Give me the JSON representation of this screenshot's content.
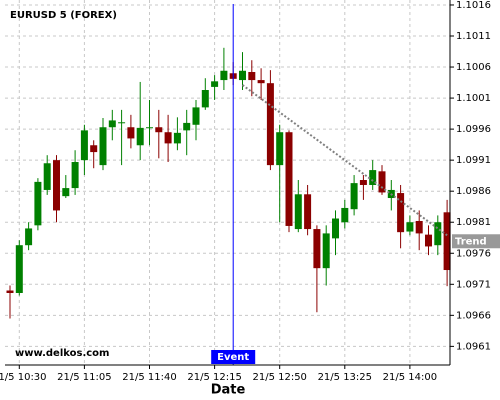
{
  "chart_data": {
    "type": "candlestick",
    "title": "EURUSD 5 (FOREX)",
    "watermark": "www.delkos.com",
    "x_label": "Date",
    "categories": [
      null,
      "21/5 10:30",
      null,
      null,
      null,
      null,
      null,
      null,
      "21/5 11:05",
      null,
      null,
      null,
      null,
      null,
      null,
      "21/5 11:40",
      null,
      null,
      null,
      null,
      null,
      null,
      "21/5 12:15",
      null,
      null,
      null,
      null,
      null,
      null,
      "21/5 12:50",
      null,
      null,
      null,
      null,
      null,
      null,
      "21/5 13:25",
      null,
      null,
      null,
      null,
      null,
      null,
      "21/5 14:00",
      null,
      null,
      null,
      null
    ],
    "open": [
      1.097,
      1.09696,
      1.09773,
      1.09805,
      1.09862,
      1.0991,
      1.09852,
      1.09865,
      1.0991,
      1.09934,
      1.09902,
      1.09963,
      1.0997,
      1.09963,
      1.09934,
      1.09962,
      1.09963,
      1.09955,
      1.09937,
      1.09958,
      1.09967,
      1.09995,
      1.10028,
      1.10039,
      1.1005,
      1.10039,
      1.10052,
      1.10039,
      1.10034,
      1.09902,
      1.09955,
      1.09799,
      1.09855,
      1.09799,
      1.09736,
      1.09784,
      1.0981,
      1.09831,
      1.09878,
      1.0987,
      1.09892,
      1.09849,
      1.09857,
      1.09795,
      1.09812,
      1.0979,
      1.09773,
      1.09826
    ],
    "high": [
      1.09708,
      1.09781,
      1.0981,
      1.09881,
      1.09918,
      1.09918,
      1.09886,
      1.09926,
      1.09967,
      1.09942,
      1.09978,
      1.09991,
      1.09991,
      1.09983,
      1.10036,
      1.10007,
      1.09991,
      1.09983,
      1.09979,
      1.09991,
      1.10007,
      1.10042,
      1.10047,
      1.10091,
      1.10068,
      1.10084,
      1.10071,
      1.10058,
      1.10055,
      1.09967,
      1.09958,
      1.09878,
      1.0987,
      1.09805,
      1.09805,
      1.09829,
      1.09846,
      1.09886,
      1.09886,
      1.0991,
      1.09902,
      1.09878,
      1.0987,
      1.09821,
      1.09829,
      1.09805,
      1.09821,
      1.09846
    ],
    "low": [
      1.09655,
      1.09692,
      1.09765,
      1.09797,
      1.09854,
      1.0981,
      1.09849,
      1.09854,
      1.09886,
      1.09897,
      1.09894,
      1.09942,
      1.09902,
      1.09929,
      1.0991,
      1.09934,
      1.09913,
      1.09907,
      1.09926,
      1.09918,
      1.09942,
      1.09991,
      1.10007,
      1.10023,
      1.10031,
      1.10023,
      1.10013,
      1.10007,
      1.09894,
      1.0981,
      1.09794,
      1.09794,
      1.09789,
      1.09665,
      1.09708,
      1.09757,
      1.098,
      1.09821,
      1.09846,
      1.09862,
      1.09854,
      1.09829,
      1.09768,
      1.09789,
      1.09765,
      1.09757,
      1.09757,
      1.09707
    ],
    "close": [
      1.09696,
      1.09773,
      1.098,
      1.09875,
      1.09905,
      1.09829,
      1.09865,
      1.09907,
      1.09958,
      1.09923,
      1.09963,
      1.09974,
      1.09971,
      1.09945,
      1.09962,
      1.09963,
      1.09955,
      1.09937,
      1.09954,
      1.0997,
      1.09995,
      1.10023,
      1.10037,
      1.10054,
      1.10041,
      1.10054,
      1.10039,
      1.10034,
      1.09902,
      1.09955,
      1.09804,
      1.09855,
      1.09799,
      1.09736,
      1.09792,
      1.09816,
      1.09833,
      1.09873,
      1.0987,
      1.09894,
      1.09858,
      1.09862,
      1.09794,
      1.0981,
      1.09792,
      1.09771,
      1.0981,
      1.09733
    ],
    "up_color": "#008000",
    "down_color": "#8b0000",
    "trend": {
      "name": "Trend",
      "color": "#808080",
      "label_color": "#999999",
      "values": [
        null,
        null,
        null,
        null,
        null,
        null,
        null,
        null,
        null,
        null,
        null,
        null,
        null,
        null,
        null,
        null,
        null,
        null,
        null,
        null,
        null,
        null,
        null,
        null,
        null,
        1.10031,
        1.1002,
        1.10009,
        1.09998,
        1.09987,
        1.09976,
        1.09965,
        1.09954,
        1.09943,
        1.09932,
        1.09921,
        1.0991,
        1.09899,
        1.09888,
        1.09877,
        1.09866,
        1.09855,
        1.09844,
        1.09833,
        1.09822,
        1.09811,
        1.098,
        1.09789
      ]
    },
    "event": {
      "label": "Event",
      "category": 24,
      "color": "#0000ff"
    },
    "ylim": [
      1.0958,
      1.10168
    ],
    "yticks": [
      1.1016,
      1.1011,
      1.1006,
      1.1001,
      1.0996,
      1.0991,
      1.0986,
      1.0981,
      1.0976,
      1.0971,
      1.0966,
      1.0961
    ],
    "grid": true
  }
}
